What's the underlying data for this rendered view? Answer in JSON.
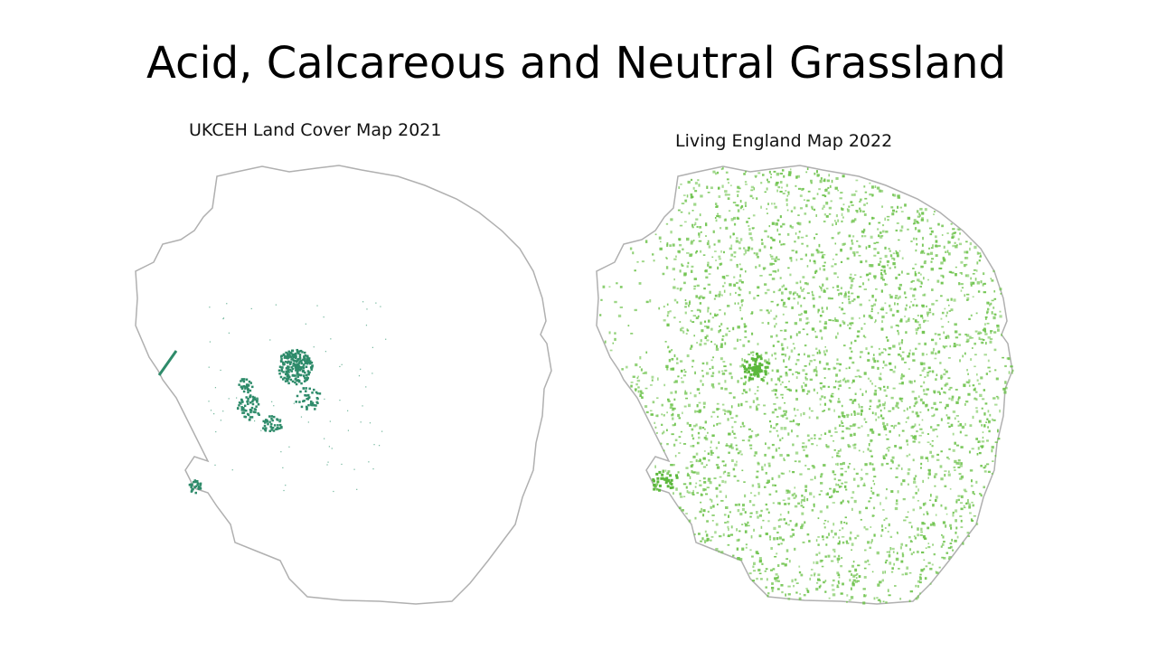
{
  "header": {
    "title": "Acid, Calcareous and Neutral Grassland"
  },
  "maps": [
    {
      "label": "UKCEH Land Cover Map 2021"
    },
    {
      "label": "Living England Map 2022"
    }
  ]
}
